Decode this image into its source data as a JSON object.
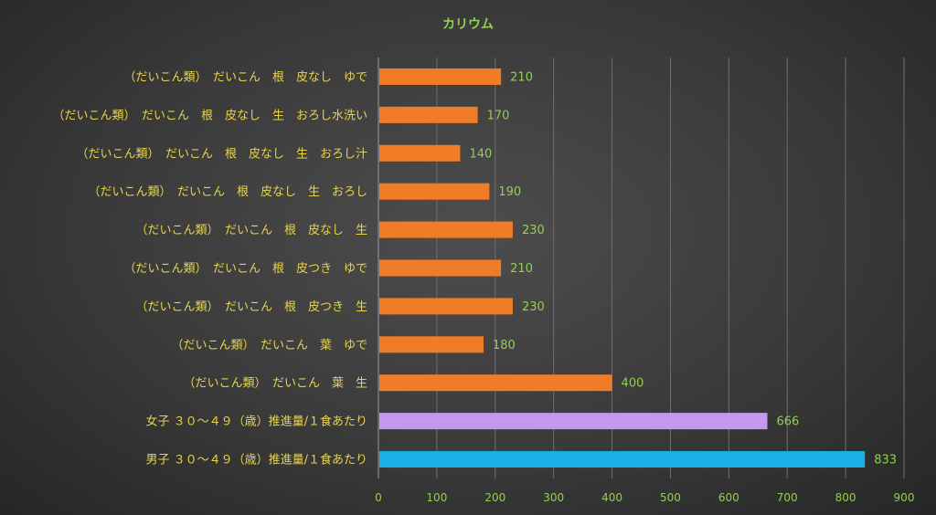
{
  "chart_data": {
    "type": "bar",
    "orientation": "horizontal",
    "title": "カリウム",
    "categories": [
      "（だいこん類）　だいこん　根　皮なし　ゆで",
      "（だいこん類）　だいこん　根　皮なし　生　おろし水洗い",
      "（だいこん類）　だいこん　根　皮なし　生　おろし汁",
      "（だいこん類）　だいこん　根　皮なし　生　おろし",
      "（だいこん類）　だいこん　根　皮なし　生",
      "（だいこん類）　だいこん　根　皮つき　ゆで",
      "（だいこん類）　だいこん　根　皮つき　生",
      "（だいこん類）　だいこん　葉　ゆで",
      "（だいこん類）　だいこん　葉　生",
      "女子 ３０～４９（歳）推進量/１食あたり",
      "男子 ３０～４９（歳）推進量/１食あたり"
    ],
    "values": [
      210,
      170,
      140,
      190,
      230,
      210,
      230,
      180,
      400,
      666,
      833
    ],
    "value_labels": [
      "210",
      "170",
      "140",
      "190",
      "230",
      "210",
      "230",
      "180",
      "400",
      "666",
      "833"
    ],
    "bar_colors": [
      "#f07c28",
      "#f07c28",
      "#f07c28",
      "#f07c28",
      "#f07c28",
      "#f07c28",
      "#f07c28",
      "#f07c28",
      "#f07c28",
      "#c597ee",
      "#1ab0e6"
    ],
    "xlim": [
      0,
      900
    ],
    "xticks": [
      "0",
      "100",
      "200",
      "300",
      "400",
      "500",
      "600",
      "700",
      "800",
      "900"
    ],
    "grid": true,
    "legend": "none",
    "colors": {
      "title": "#92d050",
      "category_labels": "#e8d44d",
      "tick_labels": "#92d050",
      "value_labels": "#92d050",
      "background": "#3a3a3a"
    }
  }
}
